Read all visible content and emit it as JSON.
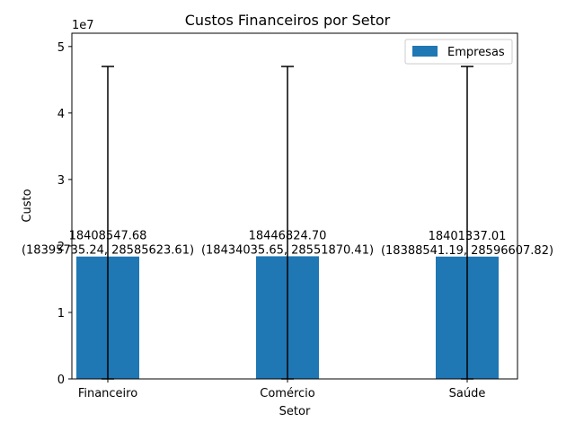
{
  "chart_data": {
    "type": "bar",
    "title": "Custos Financeiros por Setor",
    "xlabel": "Setor",
    "ylabel": "Custo",
    "y_scale_label": "1e7",
    "ylim": [
      0,
      52000000
    ],
    "yticks": [
      0,
      10000000,
      20000000,
      30000000,
      40000000,
      50000000
    ],
    "ytick_labels": [
      "0",
      "1",
      "2",
      "3",
      "4",
      "5"
    ],
    "categories": [
      "Financeiro",
      "Comércio",
      "Saúde"
    ],
    "series": [
      {
        "name": "Empresas",
        "color": "#1f77b4",
        "values": [
          18408547.68,
          18446824.7,
          18401337.01
        ],
        "error_upper": [
          47000000,
          47000000,
          47000000
        ],
        "error_lower": [
          0,
          0,
          0
        ]
      }
    ],
    "data_labels": [
      {
        "value": "18408547.68",
        "interval": "(18395735.24, 28585623.61)"
      },
      {
        "value": "18446824.70",
        "interval": "(18434035.65, 28551870.41)"
      },
      {
        "value": "18401337.01",
        "interval": "(18388541.19, 28596607.82)"
      }
    ],
    "legend": {
      "position": "top-right"
    },
    "grid": false
  }
}
